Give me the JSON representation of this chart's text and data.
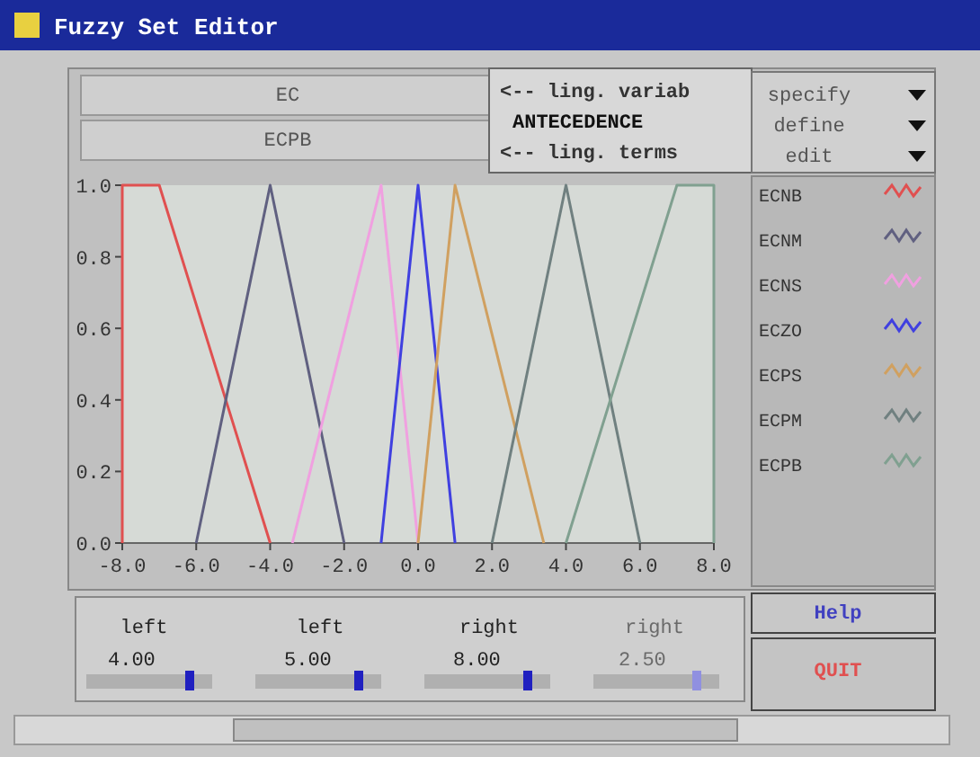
{
  "chart_data": {
    "type": "line",
    "title": "Fuzzy Set Editor",
    "xlim": [
      -8,
      8
    ],
    "xticks": [
      {
        "value": -8,
        "label": "-8.0"
      },
      {
        "value": -6,
        "label": "-6.0"
      },
      {
        "value": -4,
        "label": "-4.0"
      },
      {
        "value": -2,
        "label": "-2.0"
      },
      {
        "value": 0,
        "label": "0.0"
      },
      {
        "value": 2,
        "label": "2.0"
      },
      {
        "value": 4,
        "label": "4.0"
      },
      {
        "value": 6,
        "label": "6.0"
      },
      {
        "value": 8,
        "label": "8.0"
      }
    ],
    "ylim": [
      0,
      1
    ],
    "yticks": [
      {
        "value": 0,
        "label": "0.0"
      },
      {
        "value": 0.2,
        "label": "0.2"
      },
      {
        "value": 0.4,
        "label": "0.4"
      },
      {
        "value": 0.6,
        "label": "0.6"
      },
      {
        "value": 0.8,
        "label": "0.8"
      },
      {
        "value": 1,
        "label": "1.0"
      }
    ],
    "grid": false,
    "legend": "right",
    "marker": "none",
    "line_style": "solid",
    "series": [
      {
        "name": "ECNB",
        "color": "#e05050",
        "x": [
          -8,
          -8,
          -7,
          -4
        ],
        "values": [
          0,
          1,
          1,
          0
        ]
      },
      {
        "name": "ECNM",
        "color": "#606080",
        "x": [
          -6,
          -4,
          -2
        ],
        "values": [
          0,
          1,
          0
        ]
      },
      {
        "name": "ECNS",
        "color": "#f0a0e0",
        "x": [
          -3.4,
          -1,
          0
        ],
        "values": [
          0,
          1,
          0
        ]
      },
      {
        "name": "ECZO",
        "color": "#4040e0",
        "x": [
          -1,
          0,
          1
        ],
        "values": [
          0,
          1,
          0
        ]
      },
      {
        "name": "ECPS",
        "color": "#d0a060",
        "x": [
          0,
          1,
          3.4
        ],
        "values": [
          0,
          1,
          0
        ]
      },
      {
        "name": "ECPM",
        "color": "#708080",
        "x": [
          2,
          4,
          6
        ],
        "values": [
          0,
          1,
          0
        ]
      },
      {
        "name": "ECPB",
        "color": "#80a090",
        "x": [
          4,
          7,
          8,
          8
        ],
        "values": [
          0,
          1,
          1,
          0
        ]
      }
    ],
    "annotations": [
      "EC",
      "ECPB",
      "<-- ling. variab",
      "ANTECEDENCE",
      "<-- ling. terms",
      "specify",
      "define",
      "edit",
      "left",
      "4.00",
      "left",
      "5.00",
      "right",
      "8.00",
      "right",
      "2.50",
      "Help",
      "QUIT"
    ]
  }
}
